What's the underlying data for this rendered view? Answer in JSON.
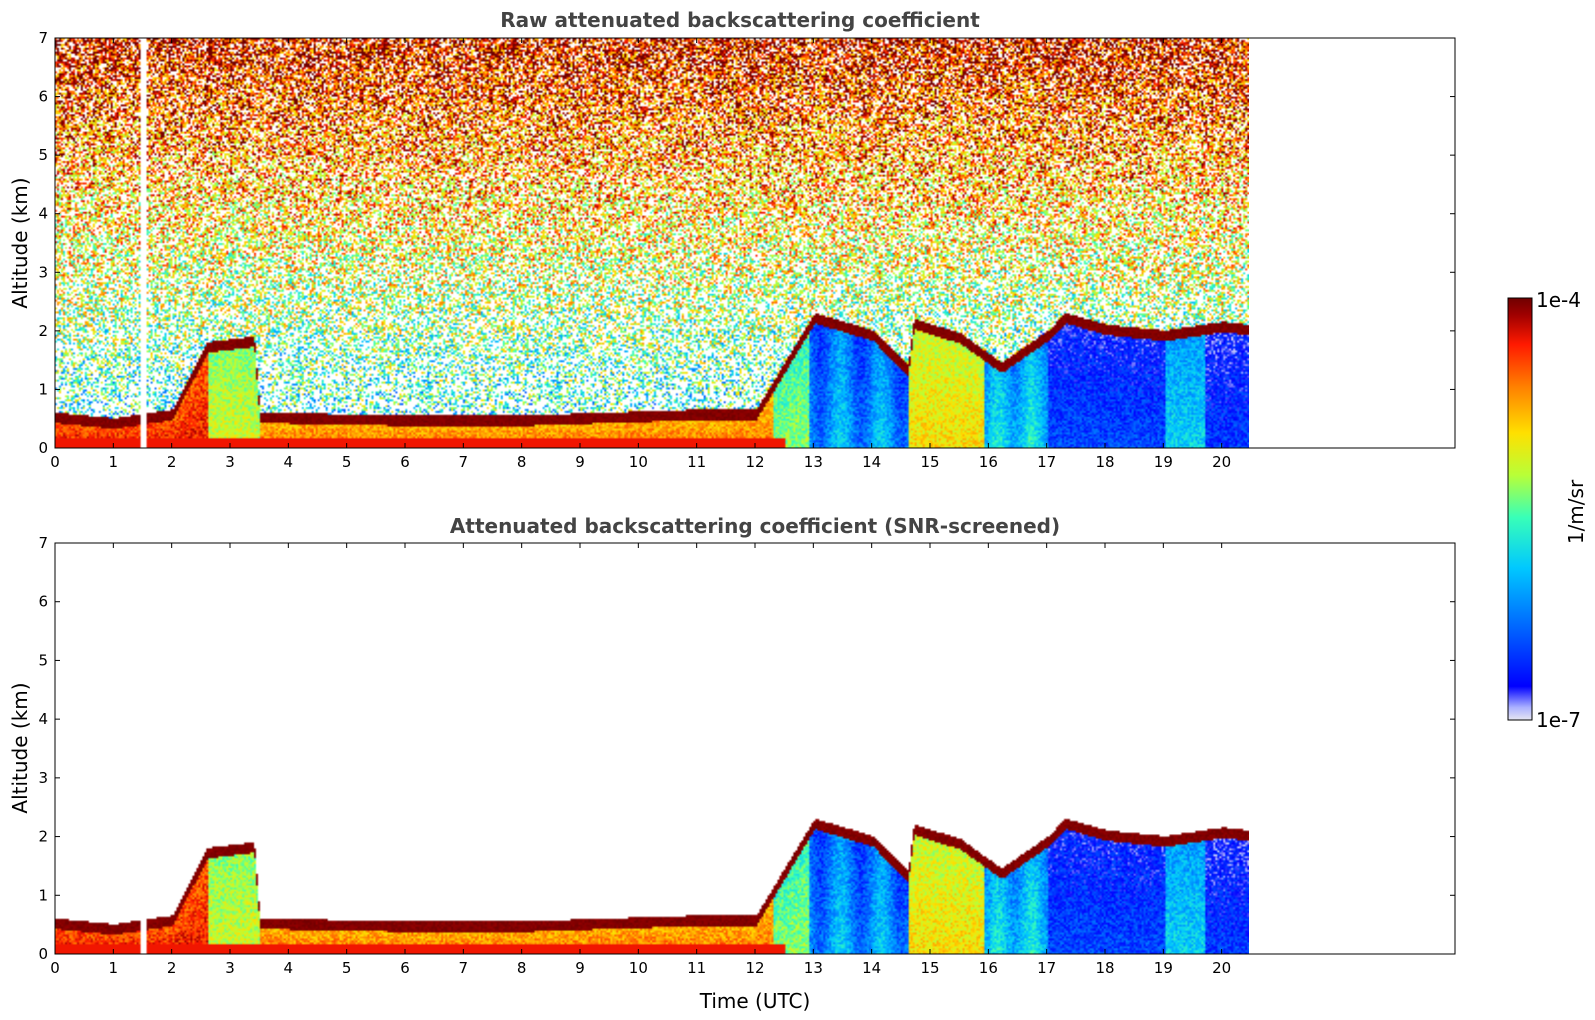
{
  "chart_data": [
    {
      "type": "heatmap",
      "title": "Raw attenuated backscattering coefficient",
      "xlabel": "",
      "ylabel": "Altitude (km)",
      "xlim": [
        0,
        24
      ],
      "ylim": [
        0,
        7
      ],
      "xticks": [
        "0",
        "1",
        "2",
        "3",
        "4",
        "5",
        "6",
        "7",
        "8",
        "9",
        "10",
        "11",
        "12",
        "13",
        "14",
        "15",
        "16",
        "17",
        "18",
        "19",
        "20"
      ],
      "yticks": [
        "0",
        "1",
        "2",
        "3",
        "4",
        "5",
        "6",
        "7"
      ],
      "data_end_time": 20.45,
      "boundary_layer_top_km": [
        {
          "t": 0.0,
          "z": 0.5
        },
        {
          "t": 1.0,
          "z": 0.4
        },
        {
          "t": 2.0,
          "z": 0.55
        },
        {
          "t": 2.6,
          "z": 1.7
        },
        {
          "t": 3.4,
          "z": 1.8
        },
        {
          "t": 3.5,
          "z": 0.5
        },
        {
          "t": 6.0,
          "z": 0.45
        },
        {
          "t": 8.0,
          "z": 0.45
        },
        {
          "t": 11.0,
          "z": 0.55
        },
        {
          "t": 12.0,
          "z": 0.55
        },
        {
          "t": 13.0,
          "z": 2.2
        },
        {
          "t": 14.0,
          "z": 1.9
        },
        {
          "t": 14.6,
          "z": 1.3
        },
        {
          "t": 14.7,
          "z": 2.1
        },
        {
          "t": 15.5,
          "z": 1.85
        },
        {
          "t": 16.2,
          "z": 1.35
        },
        {
          "t": 17.0,
          "z": 1.9
        },
        {
          "t": 17.3,
          "z": 2.2
        },
        {
          "t": 18.0,
          "z": 2.0
        },
        {
          "t": 19.0,
          "z": 1.9
        },
        {
          "t": 20.0,
          "z": 2.05
        },
        {
          "t": 20.4,
          "z": 2.0
        }
      ]
    },
    {
      "type": "heatmap",
      "title": "Attenuated backscattering coefficient (SNR-screened)",
      "xlabel": "Time (UTC)",
      "ylabel": "Altitude (km)",
      "xlim": [
        0,
        24
      ],
      "ylim": [
        0,
        7
      ],
      "xticks": [
        "0",
        "1",
        "2",
        "3",
        "4",
        "5",
        "6",
        "7",
        "8",
        "9",
        "10",
        "11",
        "12",
        "13",
        "14",
        "15",
        "16",
        "17",
        "18",
        "19",
        "20"
      ],
      "yticks": [
        "0",
        "1",
        "2",
        "3",
        "4",
        "5",
        "6",
        "7"
      ],
      "data_end_time": 20.45
    }
  ],
  "colorbar": {
    "label": "1/m/sr",
    "max_label": "1e-4",
    "min_label": "1e-7",
    "colormap": [
      "#e6e6f2",
      "#aab0ff",
      "#0000ff",
      "#0066ff",
      "#00c8ff",
      "#38ffb8",
      "#b8ff38",
      "#ffe000",
      "#ff8000",
      "#ff1a00",
      "#a00000",
      "#700000"
    ]
  }
}
